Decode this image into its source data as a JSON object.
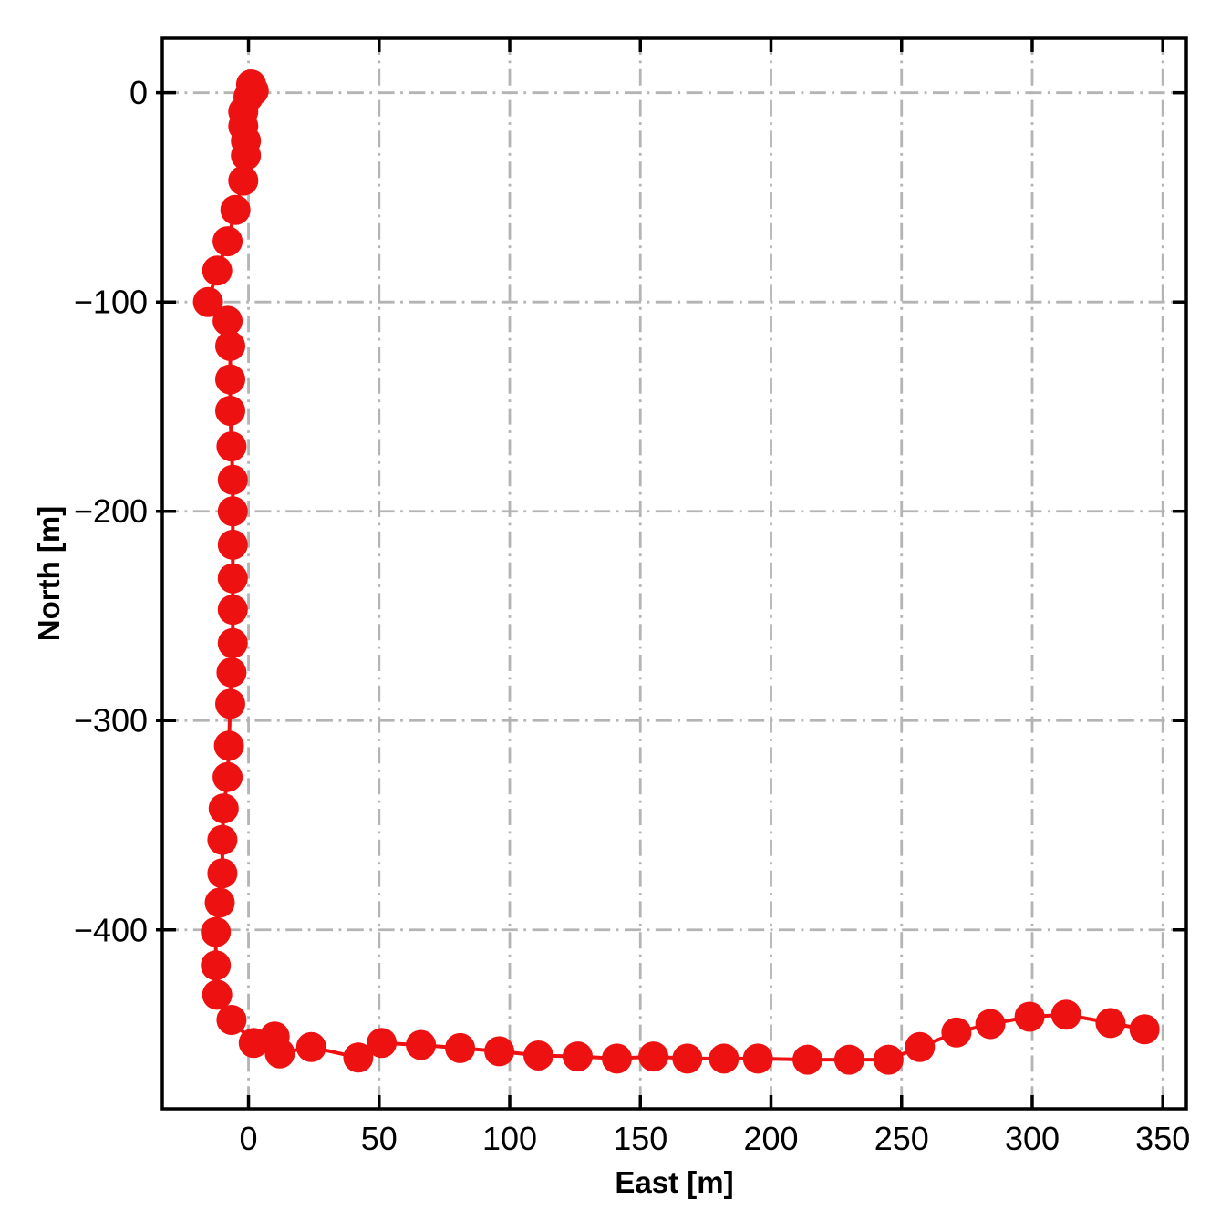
{
  "figure": {
    "background": "#ffffff",
    "colors": {
      "trajectory": "#ee1111",
      "grid": "#b4b4b4",
      "axis": "#000000",
      "tick_label": "#000000"
    }
  },
  "chart_data": {
    "type": "line",
    "title": "",
    "xlabel": "East [m]",
    "ylabel": "North [m]",
    "xlim": [
      -33,
      359
    ],
    "ylim": [
      -485.5,
      26
    ],
    "xticks": [
      0,
      50,
      100,
      150,
      200,
      250,
      300,
      350
    ],
    "yticks": [
      0,
      -100,
      -200,
      -300,
      -400
    ],
    "grid": {
      "visible": true,
      "style": "dash-dot",
      "color": "#b4b4b4"
    },
    "legend": "none",
    "series": [
      {
        "name": "trajectory",
        "color": "#ee1111",
        "marker": "circle",
        "marker_radius": 16.5,
        "line_width": 4,
        "points": [
          [
            1,
            4
          ],
          [
            2,
            1
          ],
          [
            0,
            -2
          ],
          [
            -2,
            -9
          ],
          [
            -2,
            -16
          ],
          [
            -1,
            -23
          ],
          [
            -1,
            -30
          ],
          [
            -2,
            -42
          ],
          [
            -5,
            -56
          ],
          [
            -8,
            -71
          ],
          [
            -12,
            -85
          ],
          [
            -15.5,
            -100
          ],
          [
            -8,
            -109
          ],
          [
            -7,
            -121
          ],
          [
            -7,
            -137
          ],
          [
            -7,
            -152
          ],
          [
            -6.5,
            -169
          ],
          [
            -6,
            -185
          ],
          [
            -6,
            -200
          ],
          [
            -6,
            -216
          ],
          [
            -6,
            -232
          ],
          [
            -6,
            -247
          ],
          [
            -6,
            -263
          ],
          [
            -6.5,
            -277
          ],
          [
            -7,
            -292
          ],
          [
            -7.5,
            -312
          ],
          [
            -8,
            -327
          ],
          [
            -9.5,
            -342
          ],
          [
            -10,
            -357
          ],
          [
            -10,
            -373
          ],
          [
            -11,
            -387
          ],
          [
            -12.5,
            -401
          ],
          [
            -12.5,
            -417
          ],
          [
            -12,
            -431
          ],
          [
            -6.5,
            -443
          ],
          [
            2,
            -454
          ],
          [
            10,
            -451
          ],
          [
            12,
            -459
          ],
          [
            24,
            -456
          ],
          [
            42,
            -461
          ],
          [
            51,
            -454
          ],
          [
            66,
            -455
          ],
          [
            81,
            -456.5
          ],
          [
            96,
            -458
          ],
          [
            111,
            -460
          ],
          [
            126,
            -460.5
          ],
          [
            141,
            -461.5
          ],
          [
            155,
            -460.5
          ],
          [
            168,
            -461.5
          ],
          [
            182,
            -461.5
          ],
          [
            195,
            -461.5
          ],
          [
            214,
            -462
          ],
          [
            230,
            -462
          ],
          [
            245,
            -462
          ],
          [
            257,
            -456
          ],
          [
            271,
            -449
          ],
          [
            284,
            -445
          ],
          [
            299,
            -441.5
          ],
          [
            313,
            -440.5
          ],
          [
            330,
            -444.5
          ],
          [
            343,
            -447.5
          ]
        ]
      }
    ]
  }
}
